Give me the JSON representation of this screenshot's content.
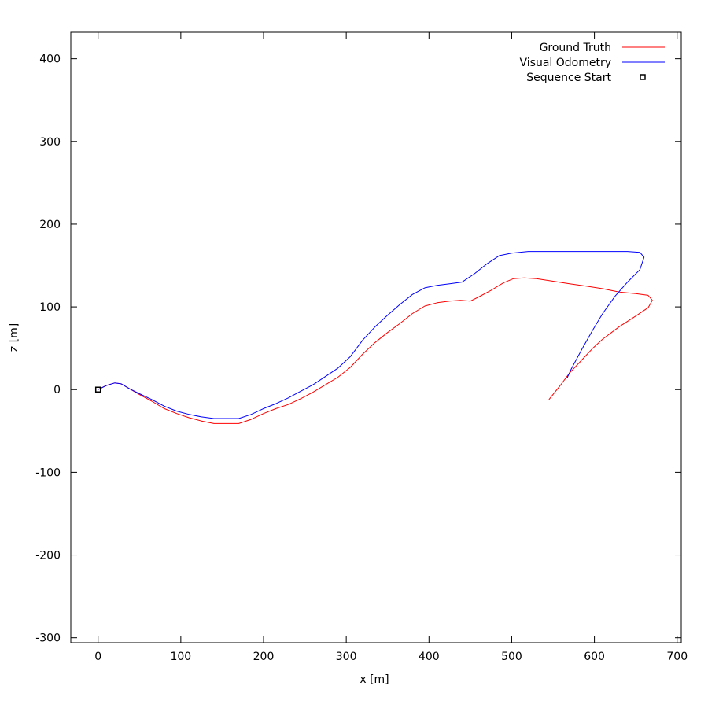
{
  "chart_data": {
    "type": "line",
    "title": "",
    "xlabel": "x [m]",
    "ylabel": "z [m]",
    "xlim": [
      -33,
      705
    ],
    "ylim": [
      -306,
      432
    ],
    "xticks": [
      0,
      100,
      200,
      300,
      400,
      500,
      600,
      700
    ],
    "yticks": [
      -300,
      -200,
      -100,
      0,
      100,
      200,
      300,
      400
    ],
    "grid": false,
    "legend_position": "top-right",
    "series": [
      {
        "name": "Ground Truth",
        "color": "#ff0000",
        "points": [
          [
            0,
            0
          ],
          [
            10,
            5
          ],
          [
            20,
            8
          ],
          [
            28,
            7
          ],
          [
            38,
            1
          ],
          [
            50,
            -6
          ],
          [
            65,
            -14
          ],
          [
            80,
            -23
          ],
          [
            95,
            -29
          ],
          [
            110,
            -34
          ],
          [
            125,
            -38
          ],
          [
            140,
            -41
          ],
          [
            155,
            -41
          ],
          [
            170,
            -41
          ],
          [
            185,
            -36
          ],
          [
            200,
            -29
          ],
          [
            215,
            -23
          ],
          [
            230,
            -18
          ],
          [
            245,
            -11
          ],
          [
            260,
            -3
          ],
          [
            275,
            6
          ],
          [
            290,
            15
          ],
          [
            305,
            27
          ],
          [
            320,
            43
          ],
          [
            335,
            57
          ],
          [
            350,
            69
          ],
          [
            365,
            80
          ],
          [
            380,
            92
          ],
          [
            395,
            101
          ],
          [
            410,
            105
          ],
          [
            425,
            107
          ],
          [
            438,
            108
          ],
          [
            450,
            107
          ],
          [
            460,
            112
          ],
          [
            475,
            120
          ],
          [
            490,
            129
          ],
          [
            502,
            134
          ],
          [
            515,
            135
          ],
          [
            530,
            134
          ],
          [
            550,
            131
          ],
          [
            570,
            128
          ],
          [
            590,
            125
          ],
          [
            610,
            122
          ],
          [
            630,
            118
          ],
          [
            650,
            116
          ],
          [
            665,
            114
          ],
          [
            670,
            108
          ],
          [
            665,
            99
          ],
          [
            650,
            89
          ],
          [
            630,
            76
          ],
          [
            610,
            61
          ],
          [
            598,
            50
          ],
          [
            585,
            36
          ],
          [
            570,
            20
          ],
          [
            558,
            4
          ],
          [
            545,
            -12
          ]
        ]
      },
      {
        "name": "Visual Odometry",
        "color": "#0000ff",
        "points": [
          [
            0,
            0
          ],
          [
            10,
            5
          ],
          [
            20,
            8
          ],
          [
            28,
            7
          ],
          [
            38,
            1
          ],
          [
            50,
            -5
          ],
          [
            65,
            -12
          ],
          [
            80,
            -20
          ],
          [
            95,
            -26
          ],
          [
            110,
            -30
          ],
          [
            125,
            -33
          ],
          [
            140,
            -35
          ],
          [
            155,
            -35
          ],
          [
            170,
            -35
          ],
          [
            185,
            -30
          ],
          [
            200,
            -23
          ],
          [
            215,
            -17
          ],
          [
            230,
            -10
          ],
          [
            245,
            -2
          ],
          [
            260,
            6
          ],
          [
            275,
            16
          ],
          [
            290,
            26
          ],
          [
            305,
            40
          ],
          [
            320,
            60
          ],
          [
            335,
            76
          ],
          [
            350,
            90
          ],
          [
            365,
            103
          ],
          [
            380,
            115
          ],
          [
            395,
            123
          ],
          [
            410,
            126
          ],
          [
            425,
            128
          ],
          [
            440,
            130
          ],
          [
            455,
            140
          ],
          [
            470,
            152
          ],
          [
            485,
            162
          ],
          [
            500,
            165
          ],
          [
            520,
            167
          ],
          [
            550,
            167
          ],
          [
            580,
            167
          ],
          [
            610,
            167
          ],
          [
            640,
            167
          ],
          [
            655,
            166
          ],
          [
            660,
            160
          ],
          [
            655,
            145
          ],
          [
            640,
            130
          ],
          [
            625,
            113
          ],
          [
            610,
            92
          ],
          [
            598,
            72
          ],
          [
            585,
            49
          ],
          [
            572,
            25
          ],
          [
            567,
            14
          ]
        ]
      }
    ],
    "markers": [
      {
        "name": "Sequence Start",
        "x": 0,
        "z": 0,
        "shape": "square"
      }
    ]
  },
  "legend": {
    "entries": [
      {
        "label": "Ground Truth",
        "kind": "line",
        "color": "#ff0000"
      },
      {
        "label": "Visual Odometry",
        "kind": "line",
        "color": "#0000ff"
      },
      {
        "label": "Sequence Start",
        "kind": "square",
        "color": "#000000"
      }
    ]
  }
}
